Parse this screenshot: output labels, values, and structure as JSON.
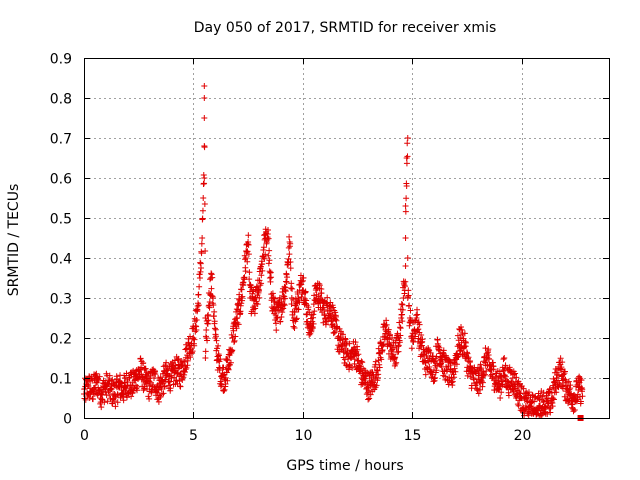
{
  "chart_data": {
    "type": "scatter",
    "title": "Day 050 of 2017, SRMTID for receiver xmis",
    "xlabel": "GPS time / hours",
    "ylabel": "SRMTID / TECUs",
    "xlim": [
      0,
      24
    ],
    "ylim": [
      0,
      0.9
    ],
    "xticks": [
      0,
      5,
      10,
      15,
      20
    ],
    "yticks": [
      0,
      0.1,
      0.2,
      0.3,
      0.4,
      0.5,
      0.6,
      0.7,
      0.8,
      0.9
    ],
    "xtick_labels": [
      "0",
      "5",
      "10",
      "15",
      "20"
    ],
    "ytick_labels": [
      "0",
      "0.1",
      "0.2",
      "0.3",
      "0.4",
      "0.5",
      "0.6",
      "0.7",
      "0.8",
      "0.9"
    ],
    "grid": true,
    "marker": "plus",
    "color": "#e00000",
    "series": [
      {
        "name": "SRMTID",
        "x": [
          0.0,
          0.2,
          0.4,
          0.6,
          0.8,
          1.0,
          1.2,
          1.4,
          1.6,
          1.8,
          2.0,
          2.2,
          2.4,
          2.6,
          2.8,
          3.0,
          3.2,
          3.4,
          3.6,
          3.8,
          4.0,
          4.2,
          4.4,
          4.6,
          4.8,
          5.0,
          5.1,
          5.2,
          5.3,
          5.4,
          5.45,
          5.5,
          5.5,
          5.5,
          5.5,
          5.5,
          5.55,
          5.55,
          5.6,
          5.7,
          5.8,
          5.9,
          6.0,
          6.2,
          6.4,
          6.6,
          6.8,
          7.0,
          7.2,
          7.3,
          7.4,
          7.5,
          7.6,
          7.8,
          8.0,
          8.2,
          8.4,
          8.5,
          8.6,
          8.8,
          9.0,
          9.2,
          9.4,
          9.5,
          9.6,
          9.8,
          10.0,
          10.2,
          10.4,
          10.6,
          10.8,
          11.0,
          11.2,
          11.4,
          11.6,
          11.8,
          12.0,
          12.2,
          12.4,
          12.6,
          12.8,
          13.0,
          13.2,
          13.4,
          13.6,
          13.8,
          14.0,
          14.2,
          14.4,
          14.5,
          14.6,
          14.7,
          14.7,
          14.7,
          14.75,
          14.75,
          14.8,
          14.8,
          14.8,
          14.85,
          14.9,
          15.0,
          15.1,
          15.2,
          15.4,
          15.6,
          15.8,
          16.0,
          16.2,
          16.4,
          16.6,
          16.8,
          17.0,
          17.2,
          17.4,
          17.6,
          17.8,
          18.0,
          18.2,
          18.4,
          18.6,
          18.8,
          19.0,
          19.2,
          19.4,
          19.6,
          19.8,
          20.0,
          20.2,
          20.4,
          20.6,
          20.8,
          21.0,
          21.2,
          21.4,
          21.6,
          21.8,
          22.0,
          22.2,
          22.4,
          22.6
        ],
        "y": [
          0.06,
          0.08,
          0.07,
          0.09,
          0.06,
          0.08,
          0.07,
          0.06,
          0.08,
          0.07,
          0.09,
          0.08,
          0.1,
          0.12,
          0.09,
          0.08,
          0.1,
          0.07,
          0.09,
          0.11,
          0.1,
          0.12,
          0.11,
          0.14,
          0.18,
          0.2,
          0.23,
          0.28,
          0.35,
          0.45,
          0.55,
          0.6,
          0.68,
          0.75,
          0.8,
          0.83,
          0.25,
          0.15,
          0.2,
          0.28,
          0.35,
          0.3,
          0.2,
          0.12,
          0.1,
          0.13,
          0.2,
          0.25,
          0.3,
          0.35,
          0.4,
          0.44,
          0.3,
          0.28,
          0.32,
          0.42,
          0.46,
          0.35,
          0.3,
          0.25,
          0.28,
          0.32,
          0.44,
          0.3,
          0.25,
          0.3,
          0.35,
          0.26,
          0.22,
          0.32,
          0.3,
          0.26,
          0.28,
          0.25,
          0.2,
          0.18,
          0.16,
          0.15,
          0.17,
          0.12,
          0.1,
          0.08,
          0.09,
          0.12,
          0.18,
          0.22,
          0.18,
          0.15,
          0.2,
          0.25,
          0.3,
          0.38,
          0.45,
          0.53,
          0.58,
          0.65,
          0.7,
          0.4,
          0.3,
          0.28,
          0.25,
          0.2,
          0.22,
          0.25,
          0.18,
          0.14,
          0.15,
          0.12,
          0.18,
          0.14,
          0.12,
          0.1,
          0.15,
          0.2,
          0.18,
          0.12,
          0.1,
          0.09,
          0.11,
          0.15,
          0.12,
          0.1,
          0.08,
          0.12,
          0.09,
          0.1,
          0.07,
          0.05,
          0.03,
          0.03,
          0.02,
          0.03,
          0.04,
          0.03,
          0.05,
          0.1,
          0.12,
          0.08,
          0.06,
          0.05,
          0.07
        ],
        "noise": 0.035
      }
    ],
    "end_marker": {
      "x": 22.7,
      "y": 0.0,
      "shape": "square"
    }
  }
}
